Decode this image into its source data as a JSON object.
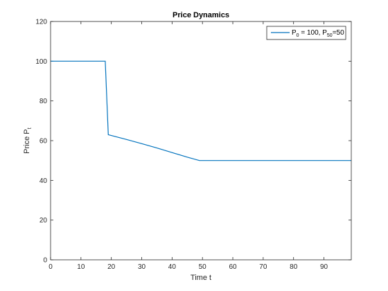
{
  "chart_data": {
    "type": "line",
    "title": "Price Dynamics",
    "xlabel": "Time t",
    "ylabel": {
      "main": "Price P",
      "sub": "t"
    },
    "xlim": [
      0,
      99
    ],
    "ylim": [
      0,
      120
    ],
    "xticks": [
      0,
      10,
      20,
      30,
      40,
      50,
      60,
      70,
      80,
      90
    ],
    "yticks": [
      0,
      20,
      40,
      60,
      80,
      100,
      120
    ],
    "grid": false,
    "legend_position": "top-right",
    "series": [
      {
        "legend": {
          "p": "P",
          "sub0": "0",
          "mid": " = 100, P",
          "sub50": "50",
          "end": "=50"
        },
        "color": "#0072BD",
        "x": [
          0,
          18,
          19,
          20,
          25,
          30,
          35,
          40,
          45,
          49,
          50,
          60,
          70,
          80,
          90,
          99
        ],
        "y": [
          100,
          100,
          63,
          62.6,
          60.6,
          58.5,
          56.3,
          54.0,
          51.7,
          50,
          50,
          50,
          50,
          50,
          50,
          50
        ]
      }
    ]
  }
}
